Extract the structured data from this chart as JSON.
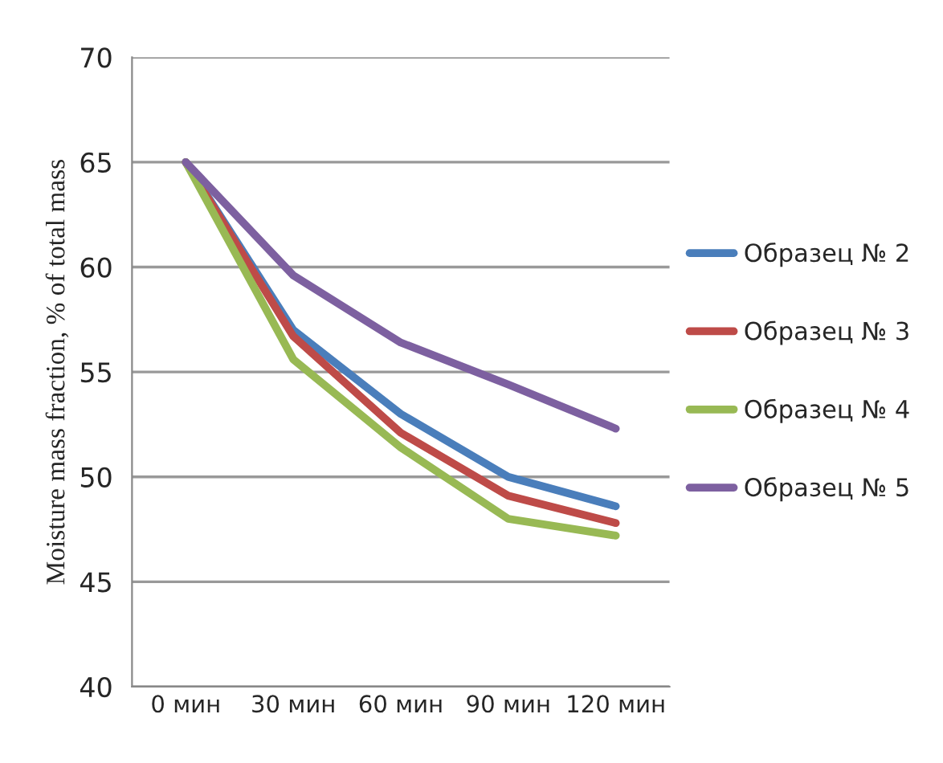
{
  "chart_data": {
    "type": "line",
    "ylabel": "Moisture mass fraction, % of total mass",
    "categories": [
      "0 мин",
      "30 мин",
      "60 мин",
      "90 мин",
      "120 мин"
    ],
    "series": [
      {
        "name": "Образец № 2",
        "color": "#4a7ebb",
        "values": [
          65,
          57.0,
          53.0,
          50.0,
          48.6
        ]
      },
      {
        "name": "Образец № 3",
        "color": "#be4b48",
        "values": [
          65,
          56.7,
          52.1,
          49.1,
          47.8
        ]
      },
      {
        "name": "Образец № 4",
        "color": "#98b954",
        "values": [
          65,
          55.6,
          51.4,
          48.0,
          47.2
        ]
      },
      {
        "name": "Образец № 5",
        "color": "#7d60a0",
        "values": [
          65,
          59.6,
          56.4,
          54.4,
          52.3
        ]
      }
    ],
    "ylim": [
      40,
      70
    ],
    "yticks": [
      40,
      45,
      50,
      55,
      60,
      65,
      70
    ],
    "grid": "y",
    "legend": "right",
    "marker": "none",
    "line_style": "solid"
  }
}
